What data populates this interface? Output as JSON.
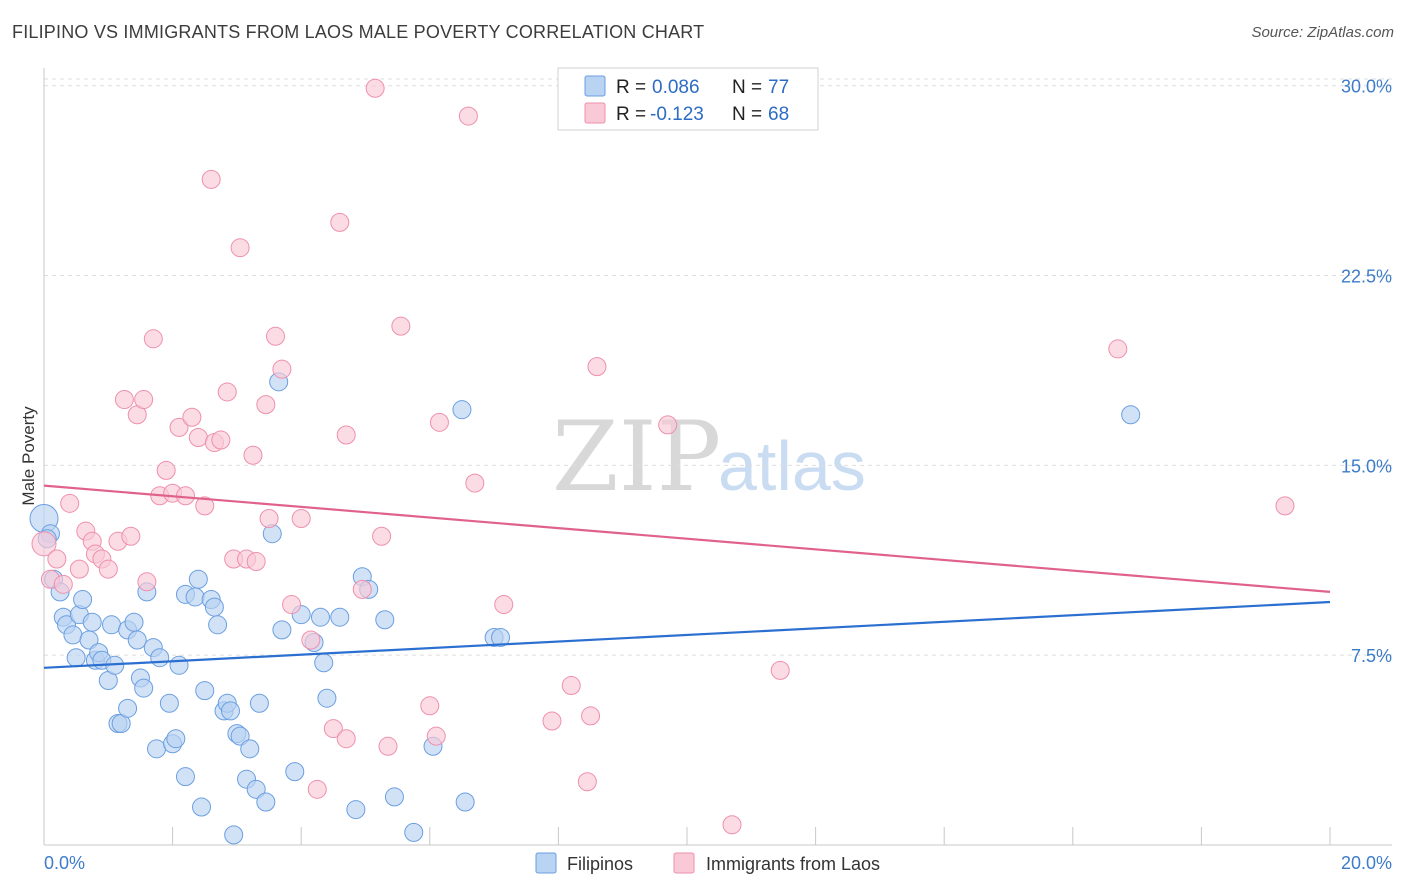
{
  "header": {
    "title": "FILIPINO VS IMMIGRANTS FROM LAOS MALE POVERTY CORRELATION CHART",
    "source": "Source: ZipAtlas.com"
  },
  "watermark": {
    "zip": "ZIP",
    "atlas": "atlas"
  },
  "legend": {
    "rows": [
      {
        "r_label": "R =",
        "r_value": "0.086",
        "n_label": "N =",
        "n_value": "77",
        "color": "#a8c8f0"
      },
      {
        "r_label": "R =",
        "r_value": "-0.123",
        "n_label": "N =",
        "n_value": "68",
        "color": "#f8bccd"
      }
    ]
  },
  "bottom_legend": {
    "items": [
      {
        "label": "Filipinos",
        "color": "#a8c8f0"
      },
      {
        "label": "Immigrants from Laos",
        "color": "#f8bccd"
      }
    ]
  },
  "chart_data": {
    "type": "scatter",
    "title": "FILIPINO VS IMMIGRANTS FROM LAOS MALE POVERTY CORRELATION CHART",
    "ylabel": "Male Poverty",
    "xlabel": "",
    "x_tick_labels": [
      "0.0%",
      "20.0%"
    ],
    "y_tick_labels": [
      "7.5%",
      "15.0%",
      "22.5%",
      "30.0%"
    ],
    "y_ticks": [
      7.5,
      15.0,
      22.5,
      30.0
    ],
    "xlim": [
      0,
      20
    ],
    "ylim": [
      0,
      30.7
    ],
    "grid": "horizontal dashed",
    "legend_position": "top-center",
    "series": [
      {
        "name": "Filipinos",
        "color": "#6b9fe0",
        "fill": "#b9d3f3",
        "trend": {
          "x": [
            0,
            20
          ],
          "y": [
            7.0,
            9.6
          ],
          "color": "#2b6fd0"
        },
        "points": [
          [
            0.0,
            12.9
          ],
          [
            0.1,
            12.3
          ],
          [
            0.15,
            10.5
          ],
          [
            0.25,
            10.0
          ],
          [
            0.3,
            9.0
          ],
          [
            0.35,
            8.7
          ],
          [
            0.45,
            8.3
          ],
          [
            0.5,
            7.4
          ],
          [
            0.55,
            9.1
          ],
          [
            0.6,
            9.7
          ],
          [
            0.7,
            8.1
          ],
          [
            0.75,
            8.8
          ],
          [
            0.8,
            7.3
          ],
          [
            0.85,
            7.6
          ],
          [
            0.9,
            7.3
          ],
          [
            1.0,
            6.5
          ],
          [
            1.05,
            8.7
          ],
          [
            1.1,
            7.1
          ],
          [
            1.15,
            4.8
          ],
          [
            1.2,
            4.8
          ],
          [
            1.3,
            5.4
          ],
          [
            1.3,
            8.5
          ],
          [
            1.4,
            8.8
          ],
          [
            1.45,
            8.1
          ],
          [
            1.5,
            6.6
          ],
          [
            1.55,
            6.2
          ],
          [
            1.6,
            10.0
          ],
          [
            1.7,
            7.8
          ],
          [
            1.75,
            3.8
          ],
          [
            1.8,
            7.4
          ],
          [
            1.95,
            5.6
          ],
          [
            2.0,
            4.0
          ],
          [
            2.05,
            4.2
          ],
          [
            2.1,
            7.1
          ],
          [
            2.2,
            2.7
          ],
          [
            2.2,
            9.9
          ],
          [
            2.35,
            9.8
          ],
          [
            2.4,
            10.5
          ],
          [
            2.45,
            1.5
          ],
          [
            2.5,
            6.1
          ],
          [
            2.6,
            9.7
          ],
          [
            2.65,
            9.4
          ],
          [
            2.7,
            8.7
          ],
          [
            2.8,
            5.3
          ],
          [
            2.85,
            5.6
          ],
          [
            2.9,
            5.3
          ],
          [
            2.95,
            0.4
          ],
          [
            3.0,
            4.4
          ],
          [
            3.05,
            4.3
          ],
          [
            3.15,
            2.6
          ],
          [
            3.2,
            3.8
          ],
          [
            3.3,
            2.2
          ],
          [
            3.35,
            5.6
          ],
          [
            3.45,
            1.7
          ],
          [
            3.55,
            12.3
          ],
          [
            3.65,
            18.3
          ],
          [
            3.7,
            8.5
          ],
          [
            3.9,
            2.9
          ],
          [
            4.0,
            9.1
          ],
          [
            4.2,
            8.0
          ],
          [
            4.3,
            9.0
          ],
          [
            4.35,
            7.2
          ],
          [
            4.4,
            5.8
          ],
          [
            4.6,
            9.0
          ],
          [
            4.85,
            1.4
          ],
          [
            4.95,
            10.6
          ],
          [
            5.05,
            10.1
          ],
          [
            5.3,
            8.9
          ],
          [
            5.45,
            1.9
          ],
          [
            5.75,
            0.5
          ],
          [
            6.05,
            3.9
          ],
          [
            6.5,
            17.2
          ],
          [
            6.55,
            1.7
          ],
          [
            7.0,
            8.2
          ],
          [
            7.1,
            8.2
          ],
          [
            16.9,
            17.0
          ],
          [
            0.05,
            12.1
          ]
        ]
      },
      {
        "name": "Immigrants from Laos",
        "color": "#ee90ad",
        "fill": "#f9c9d7",
        "trend": {
          "x": [
            0,
            20
          ],
          "y": [
            14.2,
            10.0
          ],
          "color": "#e0628c"
        },
        "points": [
          [
            0.0,
            11.9
          ],
          [
            0.1,
            10.5
          ],
          [
            0.2,
            11.3
          ],
          [
            0.3,
            10.3
          ],
          [
            0.4,
            13.5
          ],
          [
            0.55,
            10.9
          ],
          [
            0.65,
            12.4
          ],
          [
            0.75,
            12.0
          ],
          [
            0.8,
            11.5
          ],
          [
            0.9,
            11.3
          ],
          [
            1.0,
            10.9
          ],
          [
            1.15,
            12.0
          ],
          [
            1.25,
            17.6
          ],
          [
            1.35,
            12.2
          ],
          [
            1.45,
            17.0
          ],
          [
            1.55,
            17.6
          ],
          [
            1.6,
            10.4
          ],
          [
            1.7,
            20.0
          ],
          [
            1.8,
            13.8
          ],
          [
            1.9,
            14.8
          ],
          [
            2.0,
            13.9
          ],
          [
            2.1,
            16.5
          ],
          [
            2.2,
            13.8
          ],
          [
            2.3,
            16.9
          ],
          [
            2.4,
            16.1
          ],
          [
            2.5,
            13.4
          ],
          [
            2.6,
            26.3
          ],
          [
            2.65,
            15.9
          ],
          [
            2.75,
            16.0
          ],
          [
            2.85,
            17.9
          ],
          [
            2.95,
            11.3
          ],
          [
            3.05,
            23.6
          ],
          [
            3.15,
            11.3
          ],
          [
            3.25,
            15.4
          ],
          [
            3.3,
            11.2
          ],
          [
            3.45,
            17.4
          ],
          [
            3.5,
            12.9
          ],
          [
            3.6,
            20.1
          ],
          [
            3.7,
            18.8
          ],
          [
            3.85,
            9.5
          ],
          [
            4.0,
            12.9
          ],
          [
            4.15,
            8.1
          ],
          [
            4.25,
            2.2
          ],
          [
            4.5,
            4.6
          ],
          [
            4.6,
            24.6
          ],
          [
            4.7,
            4.2
          ],
          [
            4.7,
            16.2
          ],
          [
            4.95,
            10.1
          ],
          [
            5.15,
            29.9
          ],
          [
            5.25,
            12.2
          ],
          [
            5.35,
            3.9
          ],
          [
            5.55,
            20.5
          ],
          [
            6.0,
            5.5
          ],
          [
            6.1,
            4.3
          ],
          [
            6.15,
            16.7
          ],
          [
            6.6,
            28.8
          ],
          [
            6.7,
            14.3
          ],
          [
            7.15,
            9.5
          ],
          [
            7.9,
            4.9
          ],
          [
            8.2,
            6.3
          ],
          [
            8.45,
            2.5
          ],
          [
            8.5,
            5.1
          ],
          [
            8.6,
            18.9
          ],
          [
            9.7,
            16.6
          ],
          [
            10.7,
            0.8
          ],
          [
            11.45,
            6.9
          ],
          [
            16.7,
            19.6
          ],
          [
            19.3,
            13.4
          ]
        ]
      }
    ]
  }
}
